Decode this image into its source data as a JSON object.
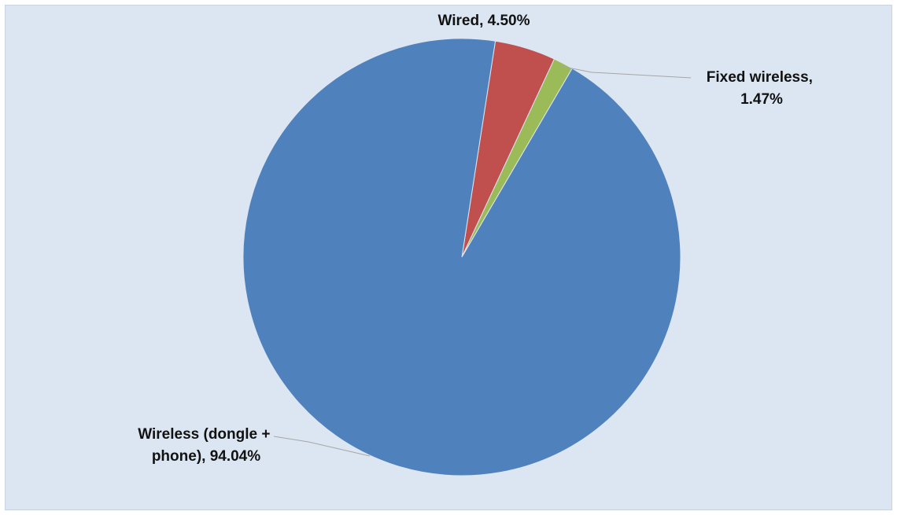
{
  "chart_data": {
    "type": "pie",
    "title": "",
    "slices": [
      {
        "label": "Wired, 4.50%",
        "name": "Wired",
        "value": 4.5,
        "color": "#c0504d"
      },
      {
        "label": "Fixed wireless, 1.47%",
        "name": "Fixed wireless",
        "value": 1.47,
        "color": "#9bbb59"
      },
      {
        "label": "Wireless (dongle + phone), 94.04%",
        "name": "Wireless (dongle + phone)",
        "value": 94.04,
        "color": "#4f81bd"
      }
    ],
    "label_lines": {
      "wired": [
        "Wired, 4.50%"
      ],
      "fixed": [
        "Fixed wireless,",
        "1.47%"
      ],
      "wireless": [
        "Wireless (dongle +",
        "phone), 94.04%"
      ]
    },
    "background_color": "#dce6f2",
    "legend": "none"
  }
}
